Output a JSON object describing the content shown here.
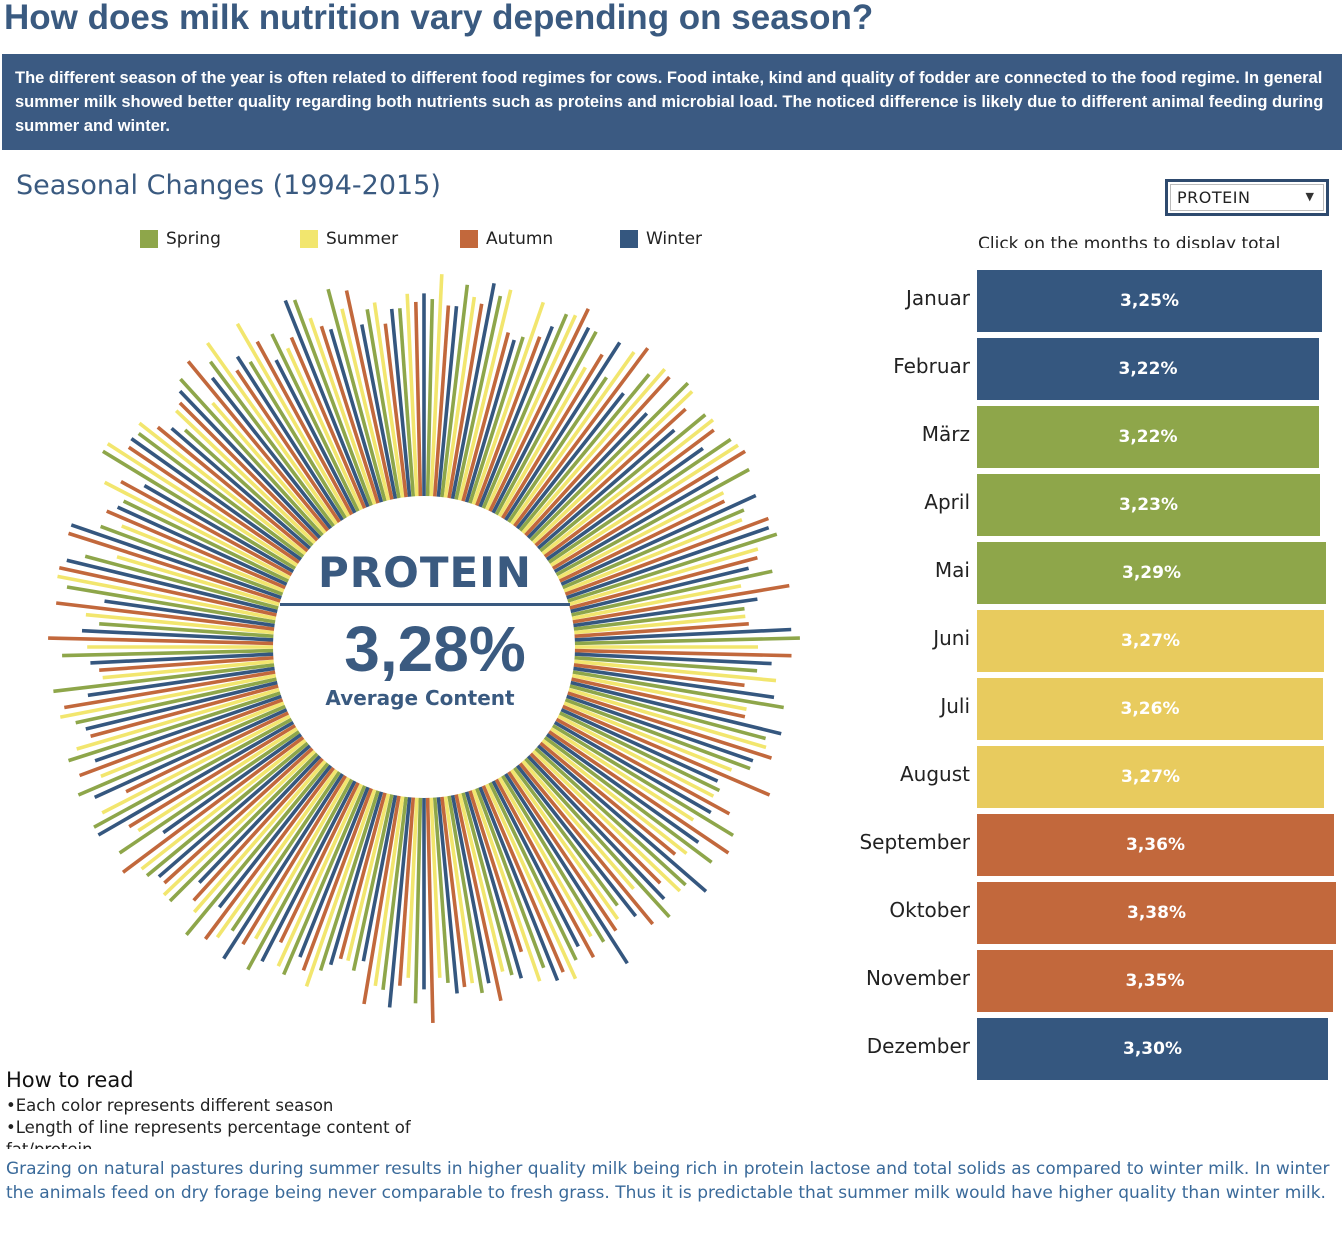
{
  "title": "How does milk nutrition vary depending on season?",
  "intro": "The different season of the year is often related to different food regimes for cows. Food intake, kind and quality of fodder are connected to the food regime. In general summer milk showed better quality regarding both nutrients such as proteins and microbial load. The noticed difference is likely due to different animal feeding during summer and winter.",
  "subtitle": "Seasonal Changes (1994-2015)",
  "selector": {
    "selected": "PROTEIN",
    "arrow": "▼"
  },
  "legend": [
    {
      "label": "Spring",
      "color": "#8ea64a"
    },
    {
      "label": "Summer",
      "color": "#f2e66e"
    },
    {
      "label": "Autumn",
      "color": "#c2683c"
    },
    {
      "label": "Winter",
      "color": "#35577f"
    }
  ],
  "center": {
    "label": "PROTEIN",
    "value": "3,28%",
    "caption": "Average Content"
  },
  "hint": "Click on the months to display total",
  "howto": {
    "title": "How to read",
    "items": [
      "•Each color represents different season",
      "•Length of line represents percentage content of fat/protein"
    ]
  },
  "footer": "Grazing on natural pastures during summer results in higher quality milk being rich in protein lactose and total solids as compared to winter milk. In winter the animals feed on dry forage being never comparable to fresh grass. Thus it is predictable that summer milk would have higher quality than winter milk.",
  "chart_data": [
    {
      "type": "bar",
      "categories": [
        "Januar",
        "Februar",
        "März",
        "April",
        "Mai",
        "Juni",
        "Juli",
        "August",
        "September",
        "Oktober",
        "November",
        "Dezember"
      ],
      "values": [
        3.25,
        3.22,
        3.22,
        3.23,
        3.29,
        3.27,
        3.26,
        3.27,
        3.36,
        3.38,
        3.35,
        3.3
      ],
      "labels": [
        "3,25%",
        "3,22%",
        "3,22%",
        "3,23%",
        "3,29%",
        "3,27%",
        "3,26%",
        "3,27%",
        "3,36%",
        "3,38%",
        "3,35%",
        "3,30%"
      ],
      "seasons": [
        "Winter",
        "Winter",
        "Spring",
        "Spring",
        "Spring",
        "Summer",
        "Summer",
        "Summer",
        "Autumn",
        "Autumn",
        "Autumn",
        "Winter"
      ],
      "colors": [
        "#35577f",
        "#35577f",
        "#8ea64a",
        "#8ea64a",
        "#8ea64a",
        "#e8cb5e",
        "#e8cb5e",
        "#e8cb5e",
        "#c2683c",
        "#c2683c",
        "#c2683c",
        "#35577f"
      ],
      "orientation": "horizontal",
      "xlim": [
        0,
        3.38
      ]
    },
    {
      "type": "radial",
      "series": [
        {
          "name": "Winter",
          "values": [
            3.27,
            3.23,
            3.33,
            3.15,
            3.24,
            3.29,
            3.3,
            3.16,
            3.16,
            3.19,
            3.23,
            3.22,
            3.31,
            3.31,
            3.2,
            3.21,
            3.32,
            3.25,
            3.27,
            3.32,
            3.25,
            3.16,
            3.19,
            3.21,
            3.34,
            3.25,
            3.23,
            3.35,
            3.21,
            3.29,
            3.24,
            3.23,
            3.25,
            3.23,
            3.3,
            3.15,
            3.19,
            3.2,
            3.27,
            3.33,
            3.19,
            3.17,
            3.26,
            3.15,
            3.35,
            3.3,
            3.25,
            3.25,
            3.22,
            3.2,
            3.23,
            3.16,
            3.32,
            3.34,
            3.21,
            3.16,
            3.29,
            3.2,
            3.27,
            3.23,
            3.24,
            3.16,
            3.34,
            3.19,
            3.18,
            3.22
          ]
        },
        {
          "name": "Spring",
          "values": [
            3.25,
            3.31,
            3.29,
            3.17,
            3.3,
            3.29,
            3.17,
            3.27,
            3.34,
            3.31,
            3.33,
            3.33,
            3.25,
            3.33,
            3.28,
            3.16,
            3.35,
            3.2,
            3.31,
            3.27,
            3.25,
            3.18,
            3.3,
            3.29,
            3.27,
            3.31,
            3.16,
            3.24,
            3.25,
            3.23,
            3.22,
            3.26,
            3.21,
            3.28,
            3.24,
            3.19,
            3.22,
            3.28,
            3.32,
            3.23,
            3.34,
            3.29,
            3.29,
            3.32,
            3.35,
            3.35,
            3.34,
            3.28,
            3.34,
            3.3,
            3.17,
            3.3,
            3.26,
            3.24,
            3.2,
            3.35,
            3.28,
            3.16,
            3.3,
            3.28,
            3.2,
            3.25,
            3.33,
            3.33,
            3.23,
            3.22
          ]
        },
        {
          "name": "Summer",
          "values": [
            3.34,
            3.27,
            3.32,
            3.31,
            3.31,
            3.16,
            3.3,
            3.32,
            3.33,
            3.32,
            3.34,
            3.21,
            3.23,
            3.25,
            3.16,
            3.16,
            3.2,
            3.27,
            3.18,
            3.28,
            3.19,
            3.17,
            3.15,
            3.2,
            3.27,
            3.15,
            3.2,
            3.2,
            3.31,
            3.27,
            3.2,
            3.22,
            3.19,
            3.19,
            3.23,
            3.16,
            3.29,
            3.26,
            3.21,
            3.28,
            3.26,
            3.29,
            3.29,
            3.22,
            3.3,
            3.25,
            3.3,
            3.33,
            3.16,
            3.21,
            3.22,
            3.34,
            3.15,
            3.17,
            3.29,
            3.35,
            3.3,
            3.23,
            3.16,
            3.34,
            3.34,
            3.18,
            3.25,
            3.25,
            3.25,
            3.27
          ]
        },
        {
          "name": "Autumn",
          "values": [
            3.23,
            3.25,
            3.17,
            3.19,
            3.35,
            3.23,
            3.34,
            3.31,
            3.27,
            3.3,
            3.35,
            3.2,
            3.32,
            3.24,
            3.33,
            3.17,
            3.32,
            3.16,
            3.18,
            3.31,
            3.35,
            3.25,
            3.32,
            3.17,
            3.2,
            3.29,
            3.23,
            3.27,
            3.27,
            3.15,
            3.3,
            3.23,
            3.35,
            3.22,
            3.3,
            3.16,
            3.24,
            3.18,
            3.25,
            3.31,
            3.23,
            3.26,
            3.35,
            3.24,
            3.19,
            3.32,
            3.24,
            3.31,
            3.17,
            3.35,
            3.33,
            3.34,
            3.34,
            3.24,
            3.24,
            3.28,
            3.24,
            3.24,
            3.33,
            3.2,
            3.25,
            3.21,
            3.21,
            3.31,
            3.17,
            3.24
          ]
        }
      ],
      "ylim": [
        3.15,
        3.35
      ]
    }
  ]
}
